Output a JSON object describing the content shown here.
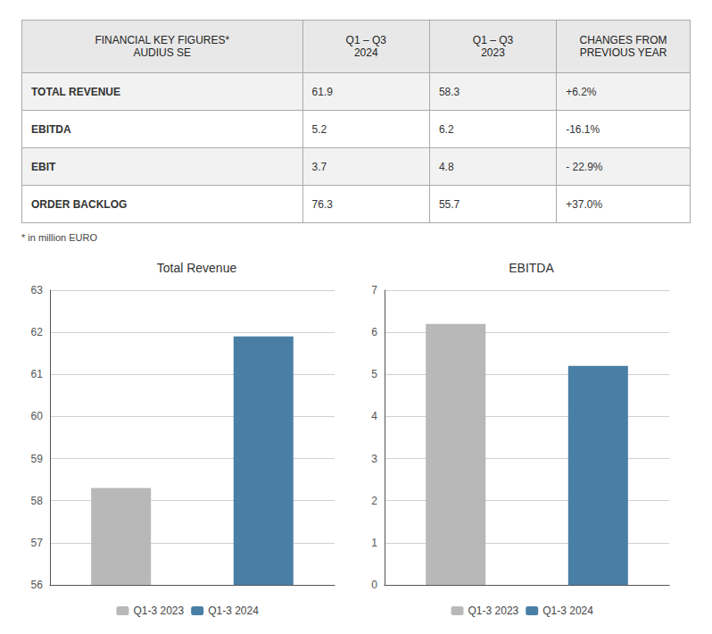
{
  "chart_data": [
    {
      "type": "table",
      "title": "FINANCIAL KEY FIGURES*\nAUDIUS SE",
      "categories": [
        "TOTAL REVENUE",
        "EBITDA",
        "EBIT",
        "ORDER BACKLOG"
      ],
      "series": [
        {
          "name": "Q1 – Q3\n2024",
          "values": [
            61.9,
            5.2,
            3.7,
            76.3
          ]
        },
        {
          "name": "Q1 – Q3\n2023",
          "values": [
            58.3,
            6.2,
            4.8,
            55.7
          ]
        },
        {
          "name": "CHANGES FROM\nPREVIOUS YEAR",
          "values": [
            6.2,
            -16.1,
            -22.9,
            37.0
          ],
          "value_labels": [
            "+6.2%",
            "-16.1%",
            "- 22.9%",
            "+37.0%"
          ]
        }
      ],
      "annotations": [
        "* in million EURO"
      ]
    },
    {
      "type": "bar",
      "title": "Total Revenue",
      "categories": [
        "Q1-3 2023",
        "Q1-3 2024"
      ],
      "values": [
        58.3,
        61.9
      ],
      "colors": [
        "#b8b8b8",
        "#4a7fa5"
      ],
      "ylim": [
        56,
        63
      ],
      "yticks": [
        56,
        57,
        58,
        59,
        60,
        61,
        62,
        63
      ],
      "grid": true,
      "legend": "bottom",
      "tick_labels": "y"
    },
    {
      "type": "bar",
      "title": "EBITDA",
      "categories": [
        "Q1-3 2023",
        "Q1-3 2024"
      ],
      "values": [
        6.2,
        5.2
      ],
      "colors": [
        "#b8b8b8",
        "#4a7fa5"
      ],
      "ylim": [
        0,
        7
      ],
      "yticks": [
        0,
        1,
        2,
        3,
        4,
        5,
        6,
        7
      ],
      "grid": true,
      "legend": "bottom",
      "tick_labels": "y"
    }
  ]
}
